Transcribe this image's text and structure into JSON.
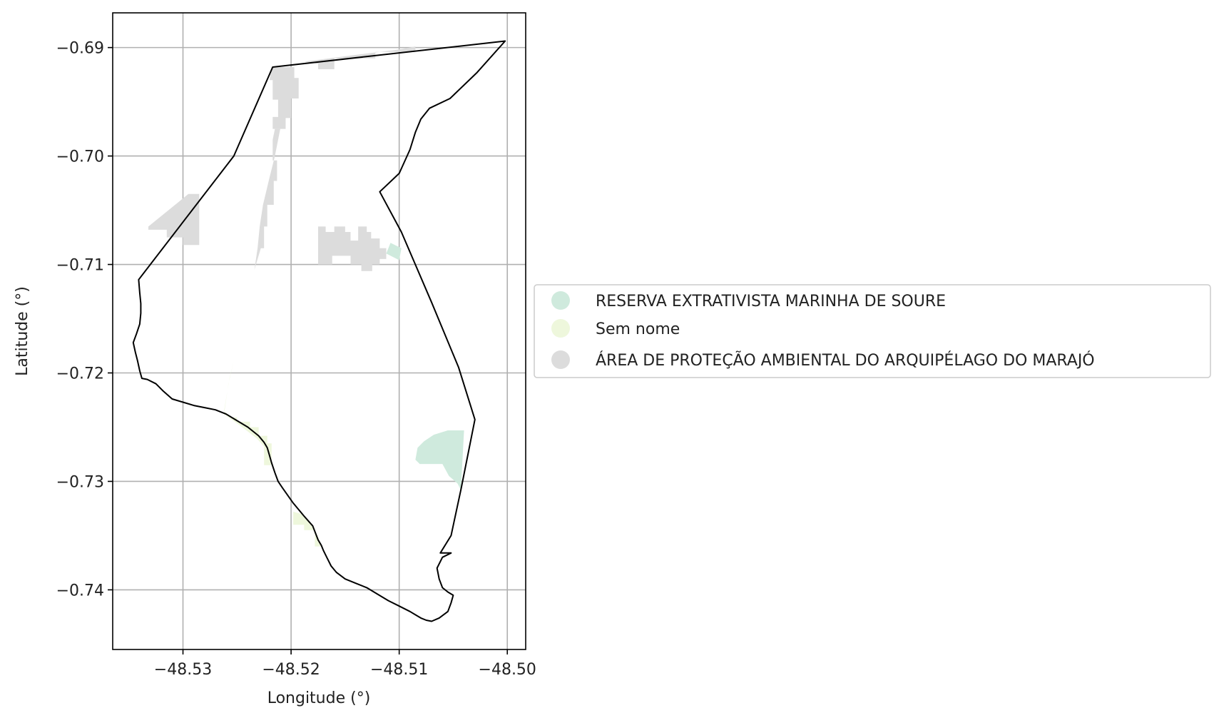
{
  "chart_data": {
    "type": "map",
    "xlabel": "Longitude (°)",
    "ylabel": "Latitude (°)",
    "xlim": [
      -48.5365,
      -48.4983
    ],
    "ylim": [
      -0.7455,
      -0.6868
    ],
    "x_ticks": [
      -48.53,
      -48.52,
      -48.51,
      -48.5
    ],
    "x_tick_labels": [
      "−48.53",
      "−48.52",
      "−48.51",
      "−48.50"
    ],
    "y_ticks": [
      -0.69,
      -0.7,
      -0.71,
      -0.72,
      -0.73,
      -0.74
    ],
    "y_tick_labels": [
      "−0.69",
      "−0.70",
      "−0.71",
      "−0.72",
      "−0.73",
      "−0.74"
    ],
    "grid": true,
    "legend": {
      "placement": "right-center",
      "entries": [
        {
          "label": "RESERVA EXTRATIVISTA MARINHA DE SOURE",
          "color": "#cfeadd"
        },
        {
          "label": "Sem nome",
          "color": "#eef7dc"
        },
        {
          "label": "ÁREA DE PROTEÇÃO AMBIENTAL DO ARQUIPÉLAGO DO MARAJÓ",
          "color": "#dcdcdc"
        }
      ]
    },
    "boundary_color": "#000000",
    "boundary": [
      [
        -48.5217,
        -0.6918
      ],
      [
        -48.5002,
        -0.6894
      ],
      [
        -48.5028,
        -0.6923
      ],
      [
        -48.5053,
        -0.6947
      ],
      [
        -48.5072,
        -0.6956
      ],
      [
        -48.508,
        -0.6966
      ],
      [
        -48.5085,
        -0.6978
      ],
      [
        -48.509,
        -0.6994
      ],
      [
        -48.51,
        -0.7016
      ],
      [
        -48.5118,
        -0.7033
      ],
      [
        -48.5098,
        -0.707
      ],
      [
        -48.507,
        -0.7135
      ],
      [
        -48.5045,
        -0.7195
      ],
      [
        -48.503,
        -0.7243
      ],
      [
        -48.5043,
        -0.7308
      ],
      [
        -48.5052,
        -0.735
      ],
      [
        -48.5062,
        -0.7366
      ],
      [
        -48.5052,
        -0.7366
      ],
      [
        -48.506,
        -0.737
      ],
      [
        -48.5065,
        -0.738
      ],
      [
        -48.5063,
        -0.739
      ],
      [
        -48.506,
        -0.7398
      ],
      [
        -48.5055,
        -0.7402
      ],
      [
        -48.505,
        -0.7405
      ],
      [
        -48.5052,
        -0.7412
      ],
      [
        -48.5055,
        -0.742
      ],
      [
        -48.5063,
        -0.7426
      ],
      [
        -48.507,
        -0.7429
      ],
      [
        -48.5075,
        -0.7428
      ],
      [
        -48.508,
        -0.7426
      ],
      [
        -48.5085,
        -0.7423
      ],
      [
        -48.509,
        -0.742
      ],
      [
        -48.51,
        -0.7415
      ],
      [
        -48.511,
        -0.741
      ],
      [
        -48.512,
        -0.7404
      ],
      [
        -48.513,
        -0.7398
      ],
      [
        -48.514,
        -0.7394
      ],
      [
        -48.515,
        -0.739
      ],
      [
        -48.5158,
        -0.7384
      ],
      [
        -48.5163,
        -0.7378
      ],
      [
        -48.5167,
        -0.737
      ],
      [
        -48.517,
        -0.7364
      ],
      [
        -48.5172,
        -0.7359
      ],
      [
        -48.5175,
        -0.7354
      ],
      [
        -48.518,
        -0.7341
      ],
      [
        -48.5188,
        -0.7332
      ],
      [
        -48.5193,
        -0.7326
      ],
      [
        -48.5198,
        -0.732
      ],
      [
        -48.5203,
        -0.7313
      ],
      [
        -48.5208,
        -0.7306
      ],
      [
        -48.5212,
        -0.73
      ],
      [
        -48.5215,
        -0.7292
      ],
      [
        -48.5218,
        -0.7283
      ],
      [
        -48.522,
        -0.7276
      ],
      [
        -48.5222,
        -0.7269
      ],
      [
        -48.5225,
        -0.7264
      ],
      [
        -48.523,
        -0.7258
      ],
      [
        -48.524,
        -0.725
      ],
      [
        -48.525,
        -0.7244
      ],
      [
        -48.526,
        -0.7238
      ],
      [
        -48.527,
        -0.7234
      ],
      [
        -48.528,
        -0.7232
      ],
      [
        -48.529,
        -0.723
      ],
      [
        -48.53,
        -0.7227
      ],
      [
        -48.531,
        -0.7224
      ],
      [
        -48.5318,
        -0.7217
      ],
      [
        -48.5325,
        -0.721
      ],
      [
        -48.5333,
        -0.7206
      ],
      [
        -48.5338,
        -0.7205
      ],
      [
        -48.534,
        -0.7198
      ],
      [
        -48.5342,
        -0.7189
      ],
      [
        -48.5344,
        -0.7181
      ],
      [
        -48.5346,
        -0.7172
      ],
      [
        -48.5343,
        -0.7164
      ],
      [
        -48.534,
        -0.7155
      ],
      [
        -48.5339,
        -0.7145
      ],
      [
        -48.5339,
        -0.7136
      ],
      [
        -48.534,
        -0.7126
      ],
      [
        -48.5341,
        -0.7114
      ],
      [
        -48.5253,
        -0.7
      ],
      [
        -48.5217,
        -0.6918
      ]
    ],
    "areas": [
      {
        "legend_index": 2,
        "polygons": [
          [
            [
              -48.5218,
              -0.6918
            ],
            [
              -48.5197,
              -0.6918
            ],
            [
              -48.5197,
              -0.6928
            ],
            [
              -48.5193,
              -0.6928
            ],
            [
              -48.5193,
              -0.6947
            ],
            [
              -48.52,
              -0.6947
            ],
            [
              -48.52,
              -0.6965
            ],
            [
              -48.5205,
              -0.6965
            ],
            [
              -48.5205,
              -0.6975
            ],
            [
              -48.5217,
              -0.6975
            ],
            [
              -48.5217,
              -0.6964
            ],
            [
              -48.5212,
              -0.6964
            ],
            [
              -48.5212,
              -0.6948
            ],
            [
              -48.5217,
              -0.6948
            ],
            [
              -48.5217,
              -0.693
            ],
            [
              -48.522,
              -0.693
            ]
          ],
          [
            [
              -48.5188,
              -0.6913
            ],
            [
              -48.5142,
              -0.6907
            ],
            [
              -48.5102,
              -0.6902
            ],
            [
              -48.5085,
              -0.6899
            ],
            [
              -48.5085,
              -0.6904
            ],
            [
              -48.5122,
              -0.6904
            ],
            [
              -48.5122,
              -0.691
            ],
            [
              -48.516,
              -0.691
            ],
            [
              -48.516,
              -0.692
            ],
            [
              -48.5175,
              -0.692
            ],
            [
              -48.5175,
              -0.6915
            ]
          ],
          [
            [
              -48.521,
              -0.6975
            ],
            [
              -48.5215,
              -0.6975
            ],
            [
              -48.5217,
              -0.6985
            ],
            [
              -48.5217,
              -0.7004
            ],
            [
              -48.5213,
              -0.7004
            ],
            [
              -48.5213,
              -0.7023
            ],
            [
              -48.5216,
              -0.7023
            ],
            [
              -48.5216,
              -0.7045
            ],
            [
              -48.5222,
              -0.7045
            ],
            [
              -48.5222,
              -0.7065
            ],
            [
              -48.5225,
              -0.7065
            ],
            [
              -48.5225,
              -0.7085
            ],
            [
              -48.5228,
              -0.7085
            ],
            [
              -48.5234,
              -0.7105
            ],
            [
              -48.5231,
              -0.7085
            ],
            [
              -48.5229,
              -0.7065
            ],
            [
              -48.5226,
              -0.7045
            ],
            [
              -48.522,
              -0.702
            ],
            [
              -48.5215,
              -0.7
            ]
          ],
          [
            [
              -48.5332,
              -0.7065
            ],
            [
              -48.5295,
              -0.7035
            ],
            [
              -48.5285,
              -0.7035
            ],
            [
              -48.5285,
              -0.7082
            ],
            [
              -48.53,
              -0.7082
            ],
            [
              -48.53,
              -0.7075
            ],
            [
              -48.5315,
              -0.7075
            ],
            [
              -48.5315,
              -0.7068
            ],
            [
              -48.5332,
              -0.7068
            ]
          ],
          [
            [
              -48.5175,
              -0.7065
            ],
            [
              -48.5168,
              -0.7065
            ],
            [
              -48.5168,
              -0.707
            ],
            [
              -48.516,
              -0.707
            ],
            [
              -48.516,
              -0.7065
            ],
            [
              -48.515,
              -0.7065
            ],
            [
              -48.515,
              -0.707
            ],
            [
              -48.5145,
              -0.707
            ],
            [
              -48.5145,
              -0.7078
            ],
            [
              -48.5138,
              -0.7078
            ],
            [
              -48.5138,
              -0.7065
            ],
            [
              -48.513,
              -0.7065
            ],
            [
              -48.513,
              -0.707
            ],
            [
              -48.5126,
              -0.707
            ],
            [
              -48.5126,
              -0.7076
            ],
            [
              -48.5118,
              -0.7076
            ],
            [
              -48.5118,
              -0.7085
            ],
            [
              -48.5112,
              -0.7085
            ],
            [
              -48.5112,
              -0.7095
            ],
            [
              -48.5118,
              -0.7095
            ],
            [
              -48.5118,
              -0.71
            ],
            [
              -48.5125,
              -0.71
            ],
            [
              -48.5125,
              -0.7106
            ],
            [
              -48.5135,
              -0.7106
            ],
            [
              -48.5135,
              -0.71
            ],
            [
              -48.5145,
              -0.71
            ],
            [
              -48.5145,
              -0.7092
            ],
            [
              -48.5162,
              -0.7092
            ],
            [
              -48.5162,
              -0.71
            ],
            [
              -48.5175,
              -0.71
            ]
          ]
        ]
      },
      {
        "legend_index": 0,
        "polygons": [
          [
            [
              -48.504,
              -0.7253
            ],
            [
              -48.5055,
              -0.7253
            ],
            [
              -48.5068,
              -0.7257
            ],
            [
              -48.5077,
              -0.7263
            ],
            [
              -48.5083,
              -0.7269
            ],
            [
              -48.5085,
              -0.728
            ],
            [
              -48.5081,
              -0.7284
            ],
            [
              -48.506,
              -0.7284
            ],
            [
              -48.5054,
              -0.7295
            ],
            [
              -48.5046,
              -0.7302
            ],
            [
              -48.5043,
              -0.7308
            ]
          ],
          [
            [
              -48.5098,
              -0.7085
            ],
            [
              -48.5108,
              -0.708
            ],
            [
              -48.5112,
              -0.709
            ],
            [
              -48.51,
              -0.7096
            ]
          ]
        ]
      },
      {
        "legend_index": 1,
        "polygons": [
          [
            [
              -48.5253,
              -0.7189
            ],
            [
              -48.5257,
              -0.7205
            ],
            [
              -48.5262,
              -0.7235
            ],
            [
              -48.5256,
              -0.7241
            ],
            [
              -48.525,
              -0.7241
            ],
            [
              -48.525,
              -0.7245
            ],
            [
              -48.5238,
              -0.7245
            ],
            [
              -48.5238,
              -0.725
            ],
            [
              -48.523,
              -0.725
            ],
            [
              -48.523,
              -0.7258
            ],
            [
              -48.5222,
              -0.7258
            ],
            [
              -48.5222,
              -0.7265
            ],
            [
              -48.5218,
              -0.7265
            ],
            [
              -48.5218,
              -0.7285
            ],
            [
              -48.5225,
              -0.7285
            ],
            [
              -48.5225,
              -0.7268
            ],
            [
              -48.5232,
              -0.726
            ],
            [
              -48.5248,
              -0.7248
            ],
            [
              -48.5262,
              -0.7238
            ],
            [
              -48.5258,
              -0.721
            ]
          ],
          [
            [
              -48.519,
              -0.733
            ],
            [
              -48.5198,
              -0.7328
            ],
            [
              -48.5198,
              -0.734
            ],
            [
              -48.5188,
              -0.734
            ],
            [
              -48.5188,
              -0.7345
            ],
            [
              -48.5178,
              -0.7345
            ],
            [
              -48.5178,
              -0.736
            ],
            [
              -48.5172,
              -0.736
            ],
            [
              -48.5175,
              -0.7352
            ],
            [
              -48.518,
              -0.7342
            ],
            [
              -48.5186,
              -0.7334
            ]
          ]
        ]
      }
    ]
  }
}
